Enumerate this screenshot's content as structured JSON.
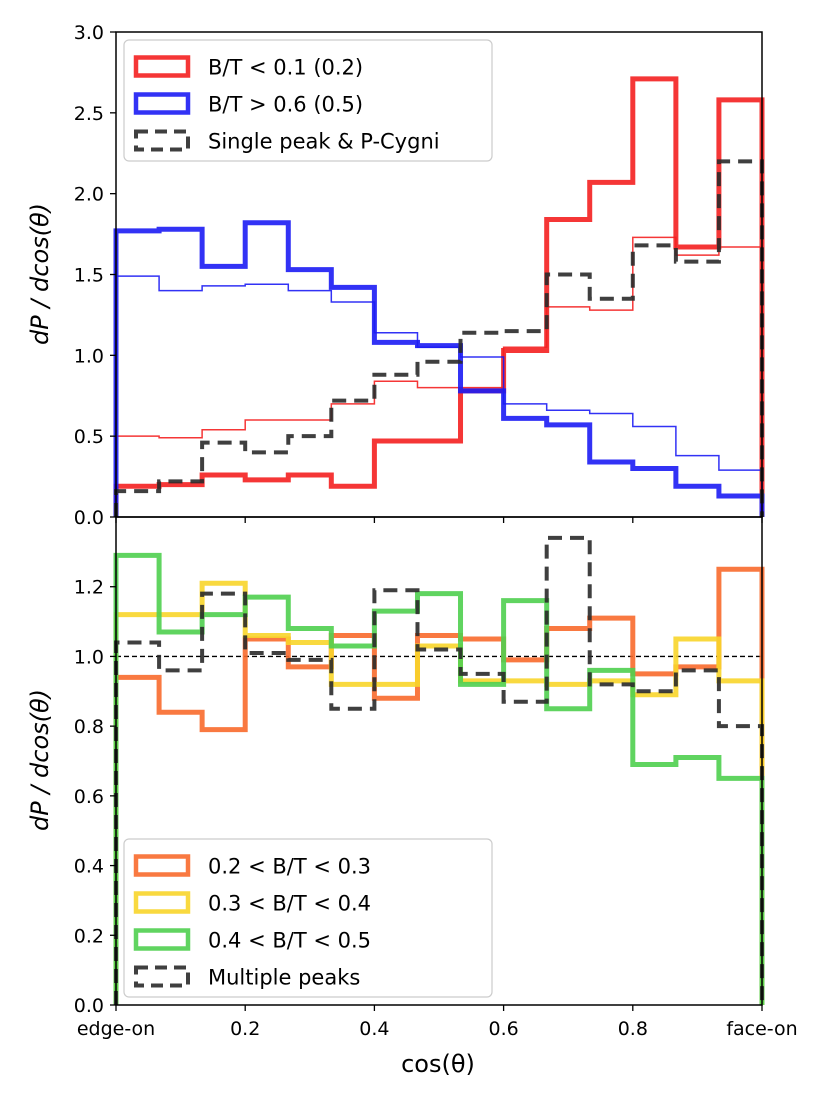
{
  "figure": {
    "xlabel": "cos(θ)",
    "x_tick_labels": [
      {
        "x": 0.0,
        "label": "edge-on"
      },
      {
        "x": 0.2,
        "label": "0.2"
      },
      {
        "x": 0.4,
        "label": "0.4"
      },
      {
        "x": 0.6,
        "label": "0.6"
      },
      {
        "x": 0.8,
        "label": "0.8"
      },
      {
        "x": 1.0,
        "label": "face-on"
      }
    ],
    "colors": {
      "red": "#f42020",
      "blue": "#1c1cf4",
      "black": "#2a2a2a",
      "orange": "#f86a2c",
      "yellow": "#f8d52a",
      "green": "#4fcf4f"
    }
  },
  "chart_data": [
    {
      "type": "step",
      "panel": "top",
      "ylabel": "dP / dcos(θ)",
      "xlim": [
        0,
        1
      ],
      "ylim": [
        0,
        3.0
      ],
      "yticks": [
        0.0,
        0.5,
        1.0,
        1.5,
        2.0,
        2.5,
        3.0
      ],
      "bin_edges": [
        0,
        0.0667,
        0.1333,
        0.2,
        0.2667,
        0.3333,
        0.4,
        0.4667,
        0.5333,
        0.6,
        0.6667,
        0.7333,
        0.8,
        0.8667,
        0.9333,
        1.0
      ],
      "legend_position": "top-left",
      "legend": [
        {
          "label": "B/T < 0.1 (0.2)",
          "color": "#f42020",
          "style": "solid"
        },
        {
          "label": "B/T > 0.6 (0.5)",
          "color": "#1c1cf4",
          "style": "solid"
        },
        {
          "label": "Single peak & P-Cygni",
          "color": "#2a2a2a",
          "style": "dashed"
        }
      ],
      "series": [
        {
          "name": "B/T < 0.1",
          "color": "#f42020",
          "weight": "thick",
          "values": [
            0.19,
            0.2,
            0.26,
            0.23,
            0.26,
            0.19,
            0.47,
            0.47,
            0.78,
            1.03,
            1.84,
            2.07,
            2.71,
            1.67,
            2.58
          ]
        },
        {
          "name": "B/T < 0.2",
          "color": "#f42020",
          "weight": "thin",
          "values": [
            0.5,
            0.49,
            0.54,
            0.6,
            0.6,
            0.7,
            0.84,
            0.8,
            0.8,
            1.05,
            1.3,
            1.28,
            1.73,
            1.62,
            1.67
          ]
        },
        {
          "name": "B/T > 0.6",
          "color": "#1c1cf4",
          "weight": "thick",
          "values": [
            1.77,
            1.78,
            1.55,
            1.82,
            1.53,
            1.42,
            1.08,
            1.06,
            0.78,
            0.61,
            0.57,
            0.34,
            0.3,
            0.19,
            0.13
          ]
        },
        {
          "name": "B/T > 0.5",
          "color": "#1c1cf4",
          "weight": "thin",
          "values": [
            1.49,
            1.4,
            1.43,
            1.44,
            1.4,
            1.33,
            1.14,
            1.05,
            0.99,
            0.7,
            0.66,
            0.64,
            0.56,
            0.38,
            0.29
          ]
        },
        {
          "name": "Single peak & P-Cygni",
          "color": "#2a2a2a",
          "weight": "dashed",
          "values": [
            0.16,
            0.22,
            0.46,
            0.4,
            0.5,
            0.72,
            0.88,
            0.96,
            1.14,
            1.15,
            1.5,
            1.35,
            1.68,
            1.58,
            2.2
          ]
        }
      ]
    },
    {
      "type": "step",
      "panel": "bottom",
      "ylabel": "dP / dcos(θ)",
      "xlabel": "cos(θ)",
      "xlim": [
        0,
        1
      ],
      "ylim": [
        0,
        1.4
      ],
      "yticks": [
        0.0,
        0.2,
        0.4,
        0.6,
        0.8,
        1.0,
        1.2
      ],
      "reference_line": 1.0,
      "bin_edges": [
        0,
        0.0667,
        0.1333,
        0.2,
        0.2667,
        0.3333,
        0.4,
        0.4667,
        0.5333,
        0.6,
        0.6667,
        0.7333,
        0.8,
        0.8667,
        0.9333,
        1.0
      ],
      "legend_position": "bottom-left",
      "legend": [
        {
          "label": "0.2 < B/T < 0.3",
          "color": "#f86a2c",
          "style": "solid"
        },
        {
          "label": "0.3 < B/T < 0.4",
          "color": "#f8d52a",
          "style": "solid"
        },
        {
          "label": "0.4 < B/T < 0.5",
          "color": "#4fcf4f",
          "style": "solid"
        },
        {
          "label": "Multiple peaks",
          "color": "#2a2a2a",
          "style": "dashed"
        }
      ],
      "series": [
        {
          "name": "0.2 < B/T < 0.3",
          "color": "#f86a2c",
          "weight": "thick",
          "values": [
            0.94,
            0.84,
            0.79,
            1.05,
            0.97,
            1.06,
            0.88,
            1.06,
            1.05,
            0.99,
            1.08,
            1.11,
            0.95,
            0.97,
            1.25
          ]
        },
        {
          "name": "0.3 < B/T < 0.4",
          "color": "#f8d52a",
          "weight": "thick",
          "values": [
            1.12,
            1.12,
            1.21,
            1.06,
            1.04,
            0.92,
            0.92,
            1.03,
            0.93,
            0.93,
            0.92,
            0.93,
            0.89,
            1.05,
            0.93
          ]
        },
        {
          "name": "0.4 < B/T < 0.5",
          "color": "#4fcf4f",
          "weight": "thick",
          "values": [
            1.29,
            1.07,
            1.12,
            1.17,
            1.08,
            1.03,
            1.13,
            1.18,
            0.92,
            1.16,
            0.85,
            0.96,
            0.69,
            0.71,
            0.65
          ]
        },
        {
          "name": "Multiple peaks",
          "color": "#2a2a2a",
          "weight": "dashed",
          "values": [
            1.04,
            0.96,
            1.18,
            1.01,
            0.99,
            0.85,
            1.19,
            1.02,
            0.95,
            0.87,
            1.34,
            0.92,
            0.9,
            0.96,
            0.8
          ]
        }
      ]
    }
  ]
}
